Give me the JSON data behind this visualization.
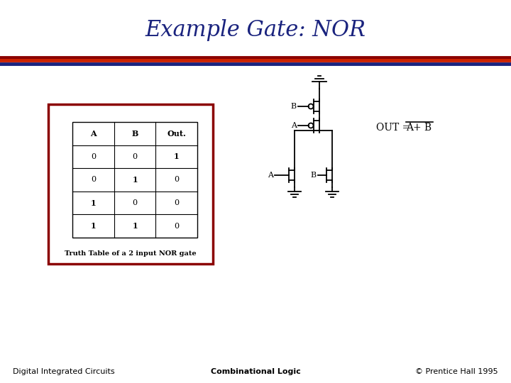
{
  "title": "Example Gate: NOR",
  "title_color": "#1a237e",
  "title_fontsize": 22,
  "bg_color": "#ffffff",
  "separator_colors_top": [
    "#8B0000",
    "#cc0000",
    "#cc0000"
  ],
  "separator_colors_bottom": [
    "#1a237e"
  ],
  "table_border_color": "#8B0000",
  "table_headers": [
    "A",
    "B",
    "Out."
  ],
  "table_data": [
    [
      "0",
      "0",
      "1"
    ],
    [
      "0",
      "1",
      "0"
    ],
    [
      "1",
      "0",
      "0"
    ],
    [
      "1",
      "1",
      "0"
    ]
  ],
  "table_caption": "Truth Table of a 2 input NOR gate",
  "footer_left": "Digital Integrated Circuits",
  "footer_center": "Combinational Logic",
  "footer_right": "© Prentice Hall 1995",
  "footer_fontsize": 8,
  "circuit_color": "#000000"
}
